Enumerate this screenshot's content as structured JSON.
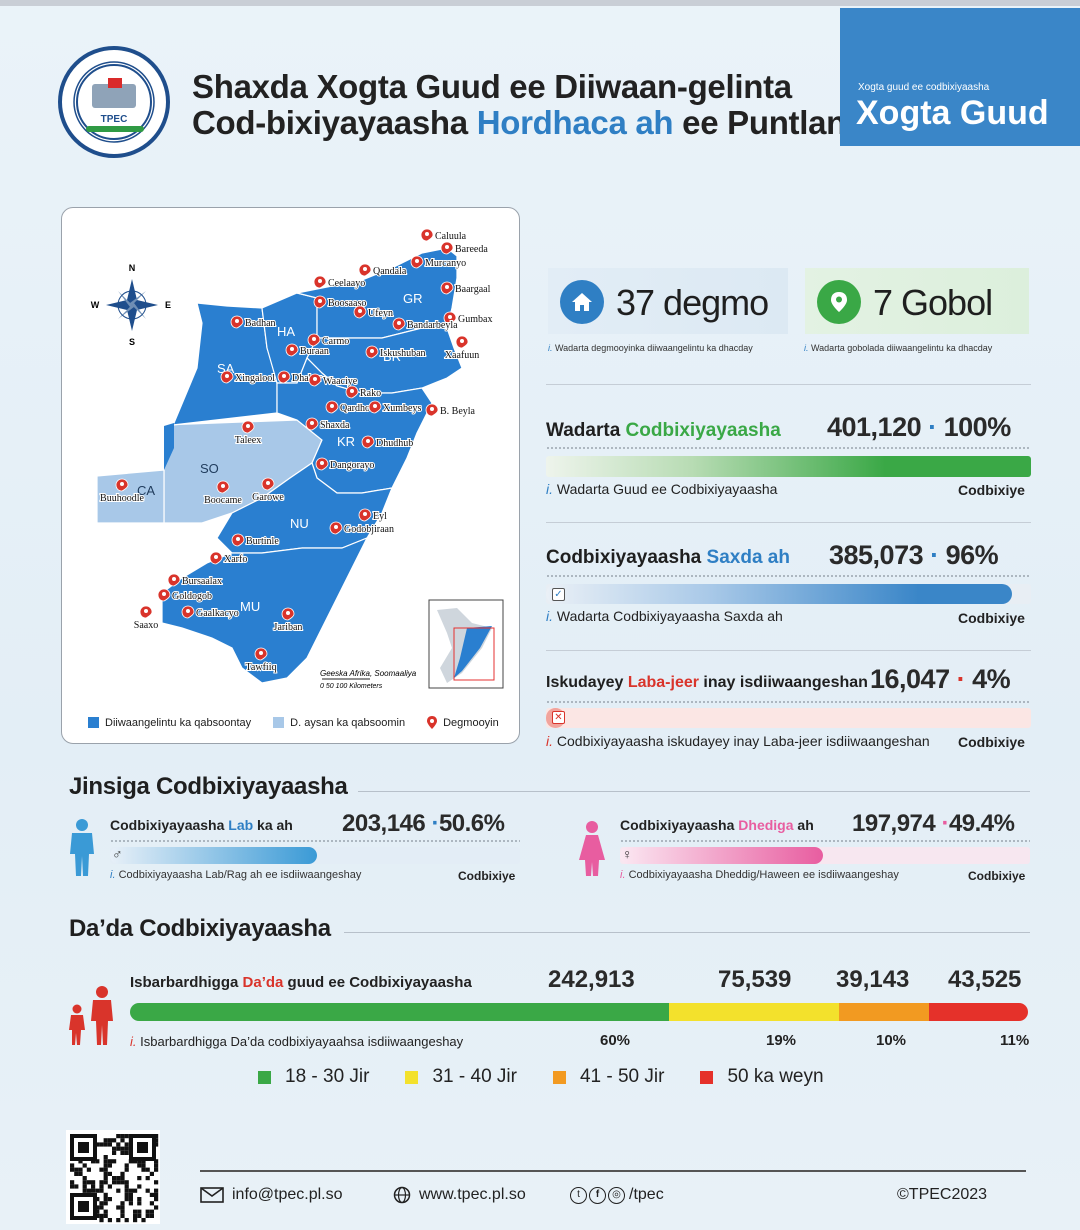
{
  "header": {
    "logo_text": "TPEC",
    "logo_ring_top": "TRANSITIONAL PUNTLAND ELECTORAL COMMISSION",
    "logo_ring_bottom": "GUDDIGA KMG AH EE DOORASHOOYINKA PUNTLAND",
    "title_line1": "Shaxda Xogta Guud ee Diiwaan-gelinta",
    "title_line2_a": "Cod-bixiyayaasha ",
    "title_line2_hl": "Hordhaca ah",
    "title_line2_b": " ee Puntland",
    "badge_small": "Xogta guud ee codbixiyaasha",
    "badge_big": "Xogta Guud"
  },
  "map": {
    "compass": {
      "n": "N",
      "s": "S",
      "e": "E",
      "w": "W"
    },
    "regions": [
      "GR",
      "HA",
      "SA",
      "BR",
      "SO",
      "KR",
      "CA",
      "NU",
      "MU"
    ],
    "places": [
      "Caluula",
      "Bareeda",
      "Murcanyo",
      "Qandala",
      "Ceelaayo",
      "Baargaal",
      "Boosaaso",
      "Ufeyn",
      "Gumbax",
      "Bandarbeyla",
      "Badhan",
      "Carmo",
      "Buraan",
      "Iskushuban",
      "Xaafuun",
      "Xingalool",
      "Dhahar",
      "Waaciye",
      "Rako",
      "Qardho",
      "Xumbeys",
      "B. Beyla",
      "Taleex",
      "Shaxda",
      "Dhudhub",
      "Dangorayo",
      "Buuhoodle",
      "Boocame",
      "Garowe",
      "Eyl",
      "Godobjiraan",
      "Burtinle",
      "Xarfo",
      "Bursaalax",
      "Goldogob",
      "Saaxo",
      "Gaalkacyo",
      "Jariban",
      "Tawfiiq"
    ],
    "inset_caption": "Geeska Afrika, Soomaaliya",
    "scale_label": "0    50   100 Kilometers",
    "legend": {
      "registered": "Diiwaangelintu ka qabsoontay",
      "not_registered": "D. aysan ka qabsoomin",
      "districts": "Degmooyin"
    }
  },
  "stats": {
    "districts_value": "37 degmo",
    "districts_note": "Wadarta degmooyinka diiwaangelintu ka dhacday",
    "regions_value": "7 Gobol",
    "regions_note": "Wadarta gobolada diiwaangelintu ka dhacday",
    "note_prefix": "i."
  },
  "rows": {
    "total": {
      "label_a": "Wadarta ",
      "label_hl": "Codbixiyayaasha",
      "value": "401,120",
      "dot": "·",
      "pct": "100%",
      "note": "Wadarta Guud ee Codbixiyayaasha",
      "unit": "Codbixiye",
      "fraction": 1.0
    },
    "valid": {
      "label_a": "Codbixiyayaasha ",
      "label_hl": "Saxda ah",
      "value": "385,073",
      "dot": "·",
      "pct": "96%",
      "note": "Wadarta Codbixiyayaasha Saxda ah",
      "unit": "Codbixiye",
      "fraction": 0.96
    },
    "double": {
      "label_a": "Iskudayey ",
      "label_hl": "Laba-jeer",
      "label_b": " inay isdiiwaangeshan",
      "value": "16,047",
      "dot": "·",
      "pct": "4%",
      "note": "Codbixiyayaasha iskudayey inay Laba-jeer isdiiwaangeshan",
      "unit": "Codbixiye",
      "fraction": 0.04
    }
  },
  "gender": {
    "title": "Jinsiga Codbixiyayaasha",
    "male": {
      "label_a": "Codbixiyayaasha ",
      "label_hl": "Lab",
      "label_b": " ka ah",
      "value": "203,146",
      "dot": "·",
      "pct": "50.6%",
      "note": "Codbixiyayaasha Lab/Rag ah ee isdiiwaangeshay",
      "unit": "Codbixiye",
      "fraction": 0.506
    },
    "female": {
      "label_a": "Codbixiyayaasha ",
      "label_hl": "Dhediga",
      "label_b": " ah",
      "value": "197,974",
      "dot": "·",
      "pct": "49.4%",
      "note": "Codbixiyayaasha Dheddig/Haween ee isdiiwaangeshay",
      "unit": "Codbixiye",
      "fraction": 0.494
    }
  },
  "age": {
    "title": "Da’da Codbixiyayaasha",
    "label_a": "Isbarbardhigga ",
    "label_hl": "Da’da",
    "label_b": " guud ee Codbixiyayaasha",
    "note": "Isbarbardhigga Da’da codbixiyayaahsa isdiiwaangeshay",
    "groups": [
      {
        "label": "18 - 30 Jir",
        "value": "242,913",
        "pct": "60%",
        "fraction": 0.6,
        "color": "#3aa846"
      },
      {
        "label": "31 - 40 Jir",
        "value": "75,539",
        "pct": "19%",
        "fraction": 0.19,
        "color": "#f3e12c"
      },
      {
        "label": "41 - 50 Jir",
        "value": "39,143",
        "pct": "10%",
        "fraction": 0.1,
        "color": "#f29a21"
      },
      {
        "label": "50 ka weyn",
        "value": "43,525",
        "pct": "11%",
        "fraction": 0.11,
        "color": "#e5312a"
      }
    ]
  },
  "footer": {
    "email": "info@tpec.pl.so",
    "website": "www.tpec.pl.so",
    "social": "/tpec",
    "copyright": "©TPEC2023"
  },
  "colors": {
    "blue": "#2f7fc4",
    "green": "#3aa846",
    "red": "#d9342b",
    "pink": "#e85da0",
    "map_dark": "#2a7fd0",
    "map_light": "#a8c8e8"
  }
}
